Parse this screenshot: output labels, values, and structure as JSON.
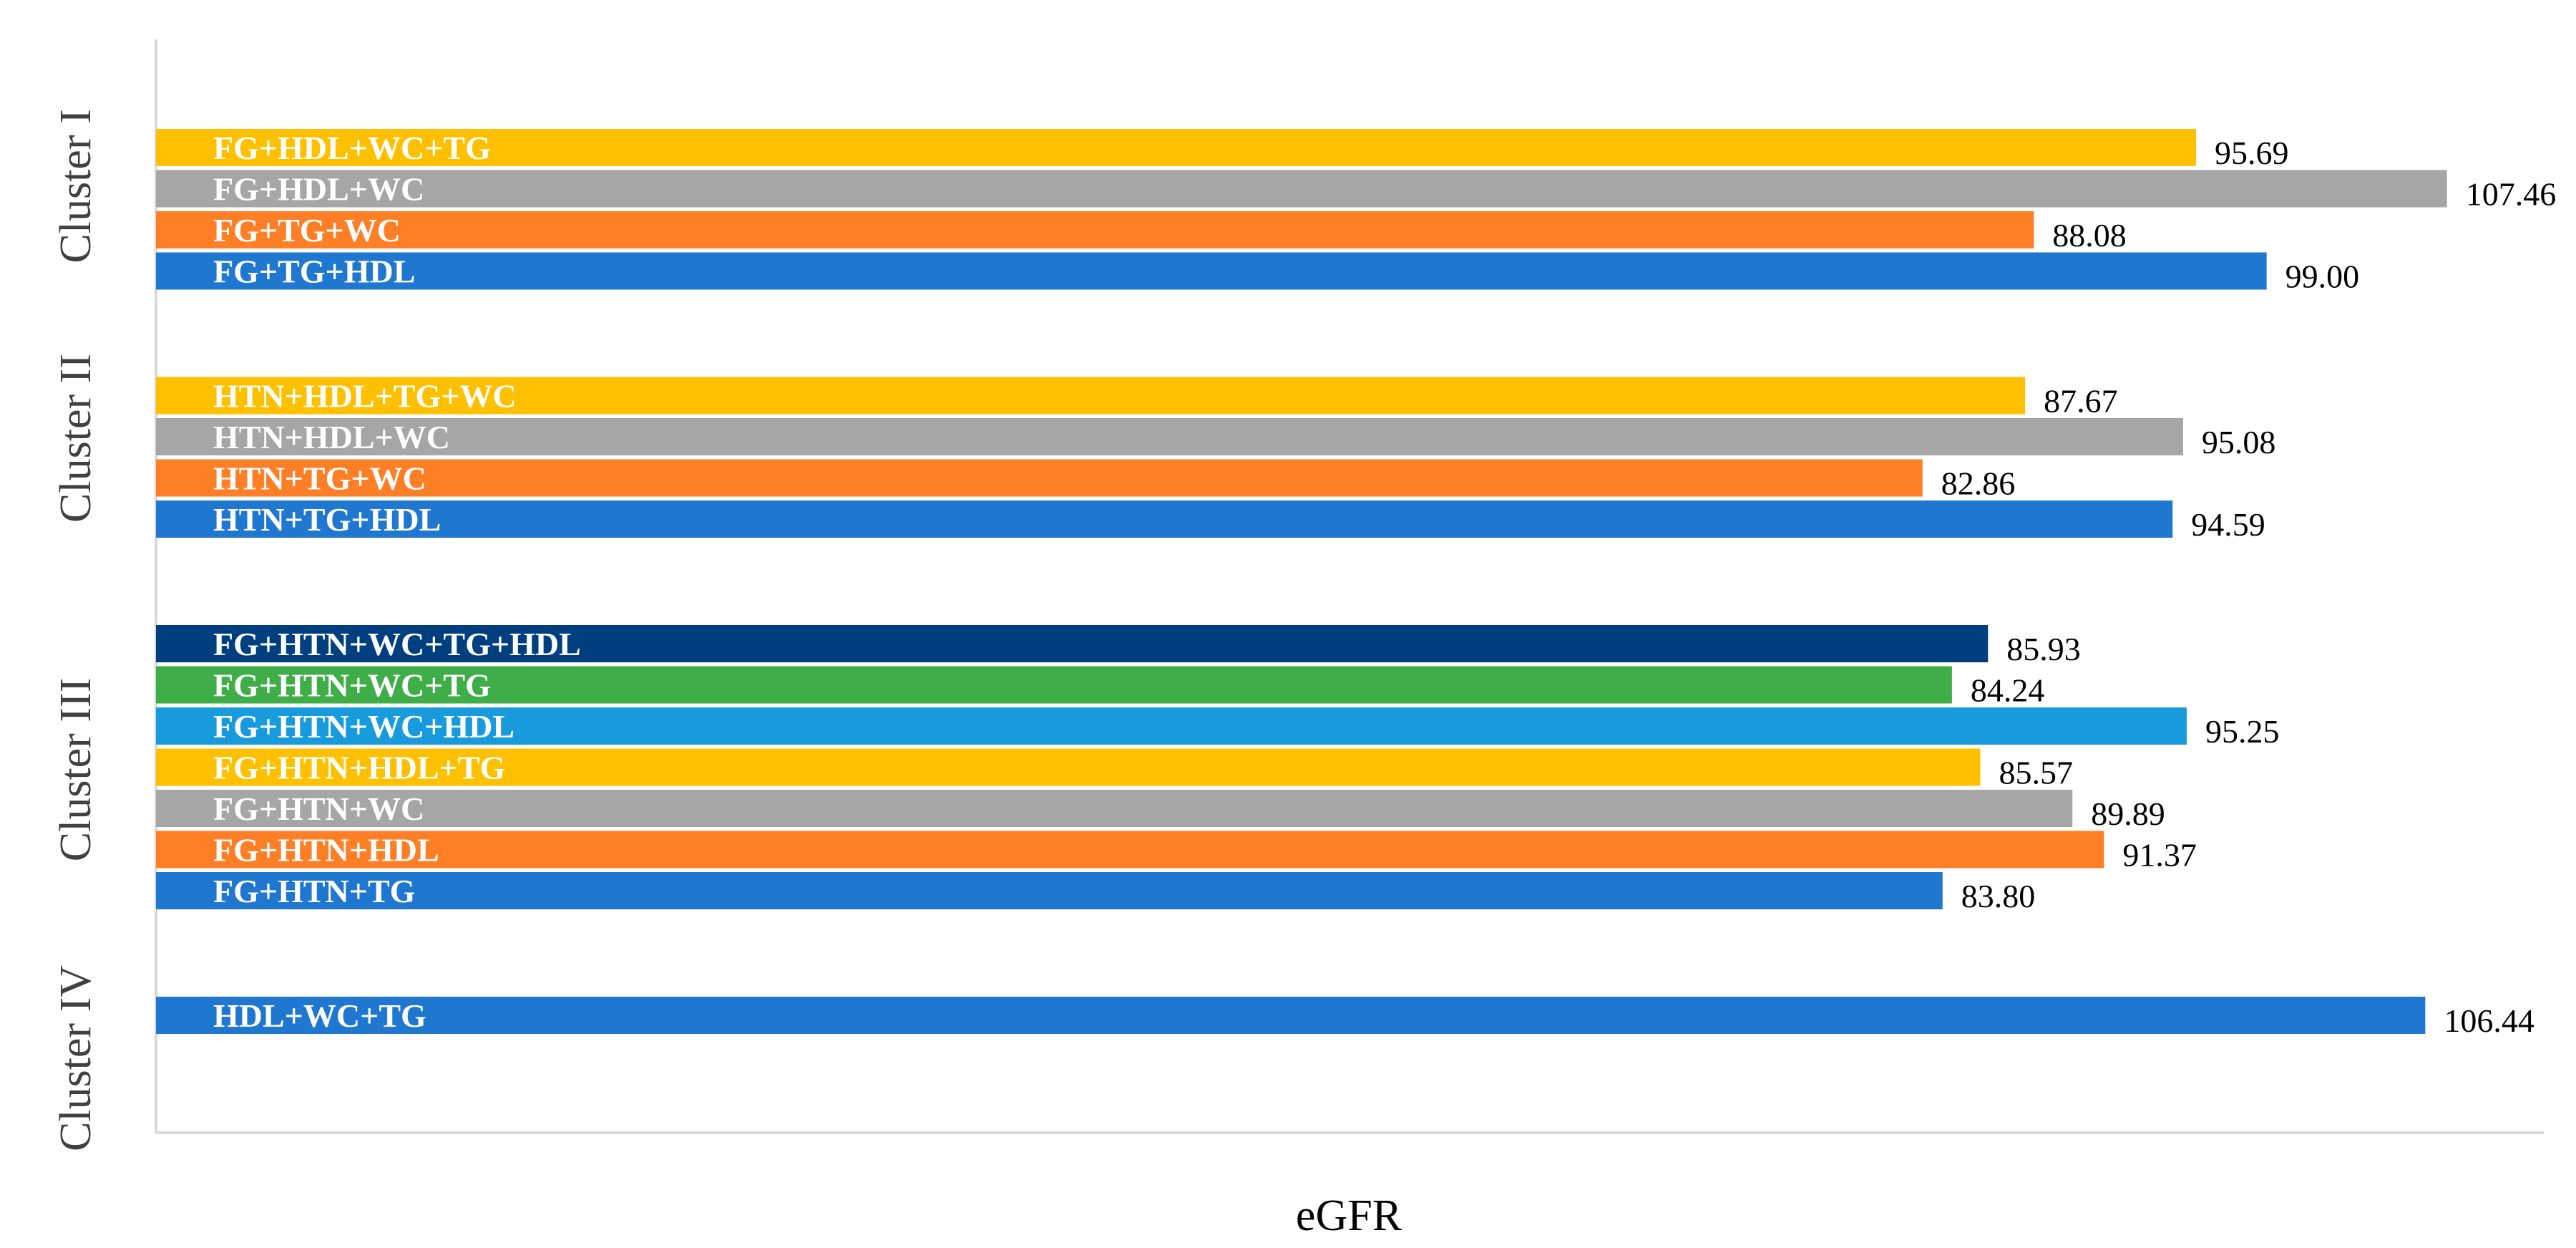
{
  "chart_data": {
    "type": "bar",
    "orientation": "horizontal",
    "xlabel": "eGFR",
    "ylabel": "",
    "xlim": [
      0,
      112
    ],
    "grid": false,
    "legend": "none",
    "value_format": "2 decimals",
    "colors": {
      "blue": "#1f77d0",
      "orange": "#ff7f27",
      "gray": "#a6a6a6",
      "yellow": "#ffc000",
      "light_blue": "#189bdc",
      "green": "#3fae49",
      "navy": "#003f7f"
    },
    "clusters": [
      {
        "name": "Cluster I",
        "bars": [
          {
            "label": "FG+HDL+WC+TG",
            "value": 95.69,
            "color": "#ffc000"
          },
          {
            "label": "FG+HDL+WC",
            "value": 107.46,
            "color": "#a6a6a6"
          },
          {
            "label": "FG+TG+WC",
            "value": 88.08,
            "color": "#ff7f27"
          },
          {
            "label": "FG+TG+HDL",
            "value": 99.0,
            "color": "#1f77d0"
          }
        ]
      },
      {
        "name": "Cluster II",
        "bars": [
          {
            "label": "HTN+HDL+TG+WC",
            "value": 87.67,
            "color": "#ffc000"
          },
          {
            "label": "HTN+HDL+WC",
            "value": 95.08,
            "color": "#a6a6a6"
          },
          {
            "label": "HTN+TG+WC",
            "value": 82.86,
            "color": "#ff7f27"
          },
          {
            "label": "HTN+TG+HDL",
            "value": 94.59,
            "color": "#1f77d0"
          }
        ]
      },
      {
        "name": "Cluster III",
        "bars": [
          {
            "label": "FG+HTN+WC+TG+HDL",
            "value": 85.93,
            "color": "#003f7f"
          },
          {
            "label": "FG+HTN+WC+TG",
            "value": 84.24,
            "color": "#3fae49"
          },
          {
            "label": "FG+HTN+WC+HDL",
            "value": 95.25,
            "color": "#189bdc"
          },
          {
            "label": "FG+HTN+HDL+TG",
            "value": 85.57,
            "color": "#ffc000"
          },
          {
            "label": "FG+HTN+WC",
            "value": 89.89,
            "color": "#a6a6a6"
          },
          {
            "label": "FG+HTN+HDL",
            "value": 91.37,
            "color": "#ff7f27"
          },
          {
            "label": "FG+HTN+TG",
            "value": 83.8,
            "color": "#1f77d0"
          }
        ]
      },
      {
        "name": "Cluster IV",
        "bars": [
          {
            "label": "HDL+WC+TG",
            "value": 106.44,
            "color": "#1f77d0"
          }
        ]
      }
    ]
  }
}
